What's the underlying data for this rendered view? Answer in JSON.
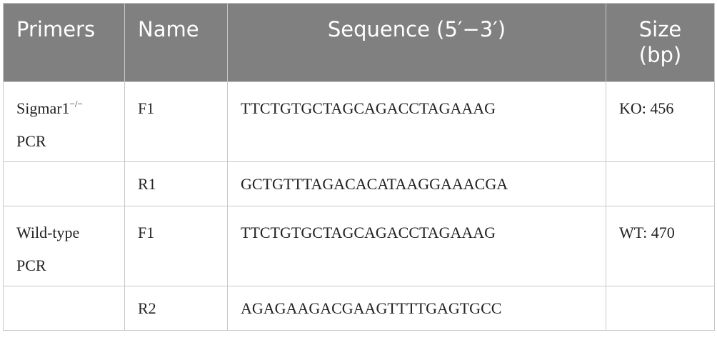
{
  "table": {
    "header": [
      "Primers",
      "Name",
      "Sequence (5′−3′)",
      "Size (bp)"
    ],
    "rows": [
      [
        {
          "main": "Sigmar1",
          "superscript": "−/−",
          "rest": "PCR"
        },
        "F1",
        "TTCTGTGCTAGCAGACCTAGAAAG",
        "KO: 456"
      ],
      [
        null,
        "R1",
        "GCTGTTTAGACACATAAGGAAACGA",
        null
      ],
      [
        "Wild-type PCR",
        "F1",
        "TTCTGTGCTAGCAGACCTAGAAAG",
        "WT: 470"
      ],
      [
        null,
        "R2",
        "AGAGAAGACGAAGTTTTGAGTGCC",
        null
      ]
    ]
  }
}
